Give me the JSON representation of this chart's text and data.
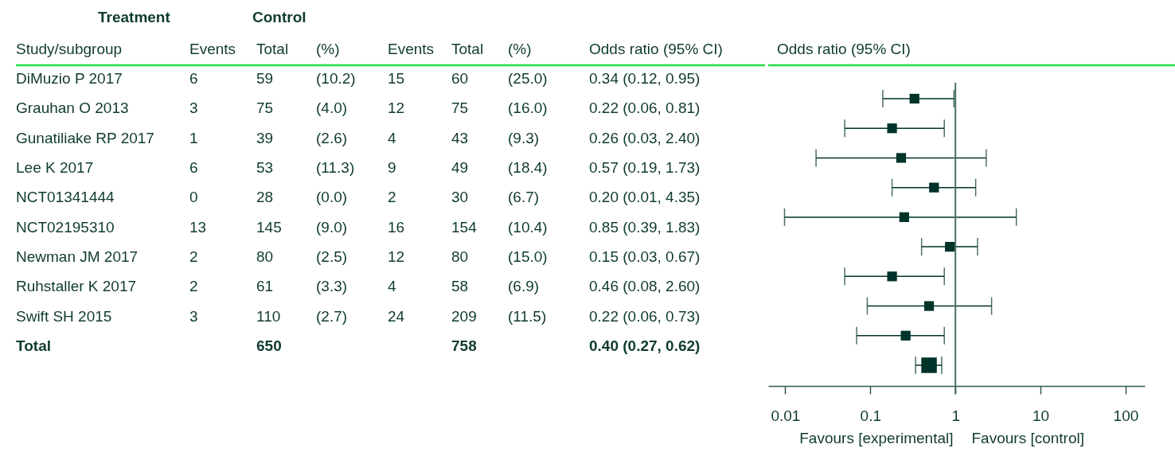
{
  "chart_data": [
    {
      "type": "other",
      "categories": [
        "Study/subgroup",
        "Events",
        "Total",
        "(%)",
        "Events",
        "Total",
        "(%)",
        "Odds ratio (95% CI)"
      ],
      "y_categories": [
        "DiMuzio P 2017",
        "Grauhan O 2013",
        "Gunatiliake RP 2017",
        "Lee K 2017",
        "NCT01341444",
        "NCT02195310",
        "Newman JM 2017",
        "Ruhstaller K 2017",
        "Swift SH 2015",
        "Total"
      ],
      "cell_labels": [
        [
          "6",
          "59",
          "(10.2)",
          "15",
          "60",
          "(25.0)",
          "0.34 (0.12, 0.95)"
        ],
        [
          "3",
          "75",
          "(4.0)",
          "12",
          "75",
          "(16.0)",
          "0.22 (0.06, 0.81)"
        ],
        [
          "1",
          "39",
          "(2.6)",
          "4",
          "43",
          "(9.3)",
          "0.26 (0.03, 2.40)"
        ],
        [
          "6",
          "53",
          "(11.3)",
          "9",
          "49",
          "(18.4)",
          "0.57 (0.19, 1.73)"
        ],
        [
          "0",
          "28",
          "(0.0)",
          "2",
          "30",
          "(6.7)",
          "0.20 (0.01, 4.35)"
        ],
        [
          "13",
          "145",
          "(9.0)",
          "16",
          "154",
          "(10.4)",
          "0.85 (0.39, 1.83)"
        ],
        [
          "2",
          "80",
          "(2.5)",
          "12",
          "80",
          "(15.0)",
          "0.15 (0.03, 0.67)"
        ],
        [
          "2",
          "61",
          "(3.3)",
          "4",
          "58",
          "(6.9)",
          "0.46 (0.08, 2.60)"
        ],
        [
          "3",
          "110",
          "(2.7)",
          "24",
          "209",
          "(11.5)",
          "0.22 (0.06, 0.73)"
        ],
        [
          null,
          "650",
          null,
          null,
          "758",
          null,
          "0.40 (0.27, 0.62)"
        ]
      ],
      "annotations": [
        "Treatment",
        "Control"
      ]
    },
    {
      "type": "scatter",
      "orientation": "horizontal",
      "title": "Odds ratio (95% CI)",
      "categories": [
        null,
        null,
        null,
        null,
        null,
        null,
        null,
        null,
        null,
        null
      ],
      "series": [
        {
          "color": "#00332a",
          "values": [
            0.33,
            0.18,
            0.23,
            0.56,
            0.25,
            0.86,
            0.18,
            0.49,
            0.26,
            null
          ],
          "errors": [
            [
              0.14,
              0.96
            ],
            [
              0.05,
              0.74
            ],
            [
              0.023,
              2.3
            ],
            [
              0.18,
              1.73
            ],
            [
              0.0098,
              5.2
            ],
            [
              0.4,
              1.82
            ],
            [
              0.05,
              0.74
            ],
            [
              0.092,
              2.66
            ],
            [
              0.069,
              0.74
            ],
            null
          ]
        },
        {
          "color": "#00332a",
          "values": [
            null,
            null,
            null,
            null,
            null,
            null,
            null,
            null,
            null,
            0.49
          ],
          "errors": [
            null,
            null,
            null,
            null,
            null,
            null,
            null,
            null,
            null,
            [
              0.34,
              0.69
            ]
          ]
        }
      ],
      "log": "x",
      "xlim": [
        0.0063,
        168
      ],
      "xticks": [
        0.01,
        0.1,
        1,
        10,
        100
      ],
      "marker": "square",
      "tick_labels": "x",
      "ref_lines": [
        {
          "axis": "x",
          "value": 1,
          "color": "#4a7068"
        }
      ],
      "annotations": [
        "Favours [experimental]",
        "Favours [control]"
      ]
    }
  ]
}
